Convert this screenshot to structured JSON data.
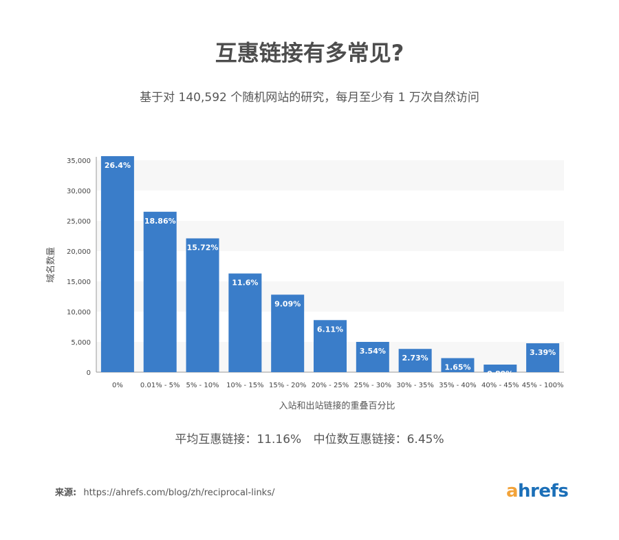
{
  "title": "互惠链接有多常见?",
  "subtitle": "基于对 140,592 个随机网站的研究，每月至少有 1 万次自然访问",
  "summary": {
    "average": "平均互惠链接：11.16%",
    "median": "中位数互惠链接：6.45%"
  },
  "source": {
    "label": "来源:",
    "url": "https://ahrefs.com/blog/zh/reciprocal-links/"
  },
  "logo": {
    "first": "a",
    "rest": "hrefs"
  },
  "colors": {
    "bar": "#3a7dc9",
    "band": "#f7f7f7",
    "logo_a": "#f2a33a",
    "logo_rest": "#1b6fb8"
  },
  "chart_data": {
    "type": "bar",
    "xlabel": "入站和出站链接的重叠百分比",
    "ylabel": "域名数量",
    "ylim": [
      0,
      35000
    ],
    "yticks": [
      "0",
      "5,000",
      "10,000",
      "15,000",
      "20,000",
      "25,000",
      "30,000",
      "35,000"
    ],
    "categories": [
      "0%",
      "0.01% - 5%",
      "5% - 10%",
      "10% - 15%",
      "15% - 20%",
      "20% - 25%",
      "25% - 30%",
      "30% - 35%",
      "35% - 40%",
      "40% - 45%",
      "45% - 100%"
    ],
    "values": [
      37100,
      26500,
      22100,
      16300,
      12800,
      8600,
      5000,
      3840,
      2320,
      1250,
      4770
    ],
    "labels": [
      "26.4%",
      "18.86%",
      "15.72%",
      "11.6%",
      "9.09%",
      "6.11%",
      "3.54%",
      "2.73%",
      "1.65%",
      "0.89%",
      "3.39%"
    ],
    "grid": "alternating-bands"
  }
}
